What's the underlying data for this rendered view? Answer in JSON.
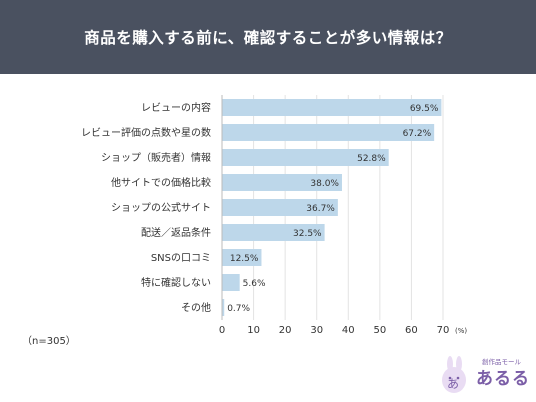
{
  "header": {
    "title": "商品を購入する前に、確認することが多い情報は？"
  },
  "chart_data": {
    "type": "bar",
    "orientation": "horizontal",
    "categories": [
      "レビューの内容",
      "レビュー評価の点数や星の数",
      "ショップ（販売者）情報",
      "他サイトでの価格比較",
      "ショップの公式サイト",
      "配送／返品条件",
      "SNSの口コミ",
      "特に確認しない",
      "その他"
    ],
    "values": [
      69.5,
      67.2,
      52.8,
      38.0,
      36.7,
      32.5,
      12.5,
      5.6,
      0.7
    ],
    "value_labels": [
      "69.5%",
      "67.2%",
      "52.8%",
      "38.0%",
      "36.7%",
      "32.5%",
      "12.5%",
      "5.6%",
      "0.7%"
    ],
    "xlim": [
      0,
      70
    ],
    "ticks": [
      "0",
      "10",
      "20",
      "30",
      "40",
      "50",
      "60",
      "70"
    ],
    "unit": "(%)",
    "grid": true,
    "bar_color": "#bdd7ea"
  },
  "note": "（n=305）",
  "logo": {
    "sub": "創作品モール",
    "main": "あるる"
  }
}
